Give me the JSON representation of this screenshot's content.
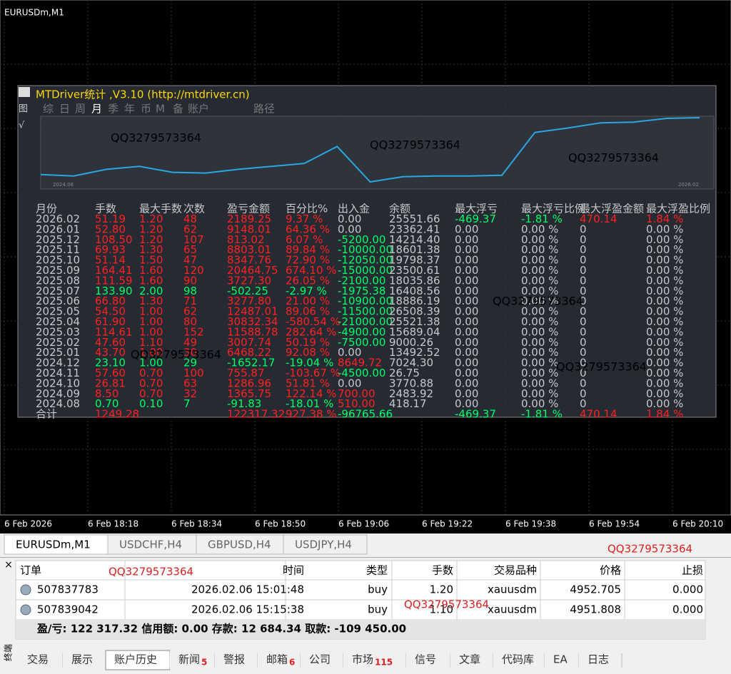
{
  "chart_window": {
    "title": "EURUSDm,M1",
    "x_axis_labels": [
      "6 Feb 2026",
      "6 Feb 18:18",
      "6 Feb 18:34",
      "6 Feb 18:50",
      "6 Feb 19:06",
      "6 Feb 19:22",
      "6 Feb 19:38",
      "6 Feb 19:54",
      "6 Feb 20:10"
    ]
  },
  "panel": {
    "title": "MTDriver统计 ,V3.10 (http://mtdriver.cn)",
    "side_icons": [
      "图",
      "√"
    ],
    "tabs": [
      "综",
      "日",
      "周",
      "月",
      "季",
      "年",
      "币",
      "M",
      "备",
      "账户",
      "路径"
    ],
    "sparkline": {
      "start_label": "2024.08",
      "end_label": "2026.02",
      "values": [
        22,
        20,
        29,
        33,
        25,
        24,
        29,
        33,
        37,
        60,
        12,
        19,
        20,
        20,
        21,
        79,
        85,
        92,
        93,
        98,
        99
      ]
    },
    "watermarks": [
      "QQ3279573364",
      "QQ3279573364",
      "QQ3279573364",
      "QQ3279573364",
      "QQ3279573364",
      "QQ3279573364"
    ],
    "table": {
      "columns": [
        "月份",
        "手数",
        "最大手数",
        "次数",
        "盈亏金额",
        "百分比%",
        "出入金",
        "余额",
        "最大浮亏",
        "最大浮亏比例",
        "最大浮盈金额",
        "最大浮盈比例"
      ],
      "rows": [
        [
          "2026.02",
          "51.19",
          "1.20",
          "48",
          "2189.25",
          "9.37 %",
          "0.00",
          "25551.66",
          "-469.37",
          "-1.81 %",
          "470.14",
          "1.84 %"
        ],
        [
          "2026.01",
          "52.80",
          "1.20",
          "62",
          "9148.01",
          "64.36 %",
          "0.00",
          "23362.41",
          "0.00",
          "0.00 %",
          "0",
          "0.00 %"
        ],
        [
          "2025.12",
          "108.50",
          "1.20",
          "107",
          "813.02",
          "6.07 %",
          "-5200.00",
          "14214.40",
          "0.00",
          "0.00 %",
          "0",
          "0.00 %"
        ],
        [
          "2025.11",
          "69.93",
          "1.30",
          "65",
          "8803.01",
          "89.84 %",
          "-10000.00",
          "18601.38",
          "0.00",
          "0.00 %",
          "0",
          "0.00 %"
        ],
        [
          "2025.10",
          "51.14",
          "1.50",
          "47",
          "8347.76",
          "72.90 %",
          "-12050.00",
          "19798.37",
          "0.00",
          "0.00 %",
          "0",
          "0.00 %"
        ],
        [
          "2025.09",
          "164.41",
          "1.60",
          "120",
          "20464.75",
          "674.10 %",
          "-15000.00",
          "23500.61",
          "0.00",
          "0.00 %",
          "0",
          "0.00 %"
        ],
        [
          "2025.08",
          "111.59",
          "1.60",
          "90",
          "3727.30",
          "26.05 %",
          "-2100.00",
          "18035.86",
          "0.00",
          "0.00 %",
          "0",
          "0.00 %"
        ],
        [
          "2025.07",
          "133.90",
          "2.00",
          "98",
          "-502.25",
          "-2.97 %",
          "-1975.38",
          "16408.56",
          "0.00",
          "0.00 %",
          "0",
          "0.00 %"
        ],
        [
          "2025.06",
          "66.80",
          "1.30",
          "71",
          "3277.80",
          "21.00 %",
          "-10900.00",
          "18886.19",
          "0.00",
          "0.00 %",
          "0",
          "0.00 %"
        ],
        [
          "2025.05",
          "54.50",
          "1.00",
          "62",
          "12487.01",
          "89.06 %",
          "-11500.00",
          "26508.39",
          "0.00",
          "0.00 %",
          "0",
          "0.00 %"
        ],
        [
          "2025.04",
          "61.90",
          "1.00",
          "80",
          "30832.34",
          "-580.54 %",
          "-21000.00",
          "25521.38",
          "0.00",
          "0.00 %",
          "0",
          "0.00 %"
        ],
        [
          "2025.03",
          "114.61",
          "1.00",
          "152",
          "11588.78",
          "282.64 %",
          "-4900.00",
          "15689.04",
          "0.00",
          "0.00 %",
          "0",
          "0.00 %"
        ],
        [
          "2025.02",
          "47.60",
          "1.10",
          "49",
          "3007.74",
          "50.19 %",
          "-7500.00",
          "9000.26",
          "0.00",
          "0.00 %",
          "0",
          "0.00 %"
        ],
        [
          "2025.01",
          "43.70",
          "1.00",
          "30",
          "6468.22",
          "92.08 %",
          "0.00",
          "13492.52",
          "0.00",
          "0.00 %",
          "0",
          "0.00 %"
        ],
        [
          "2024.12",
          "23.10",
          "1.00",
          "29",
          "-1652.17",
          "-19.04 %",
          "8649.72",
          "7024.30",
          "0.00",
          "0.00 %",
          "0",
          "0.00 %"
        ],
        [
          "2024.11",
          "57.60",
          "0.70",
          "100",
          "755.87",
          "-103.67 %",
          "-4500.00",
          "26.75",
          "0.00",
          "0.00 %",
          "0",
          "0.00 %"
        ],
        [
          "2024.10",
          "26.81",
          "0.70",
          "63",
          "1286.96",
          "51.81 %",
          "0.00",
          "3770.88",
          "0.00",
          "0.00 %",
          "0",
          "0.00 %"
        ],
        [
          "2024.09",
          "8.50",
          "0.70",
          "32",
          "1365.75",
          "122.14 %",
          "700.00",
          "2483.92",
          "0.00",
          "0.00 %",
          "0",
          "0.00 %"
        ],
        [
          "2024.08",
          "0.70",
          "0.10",
          "7",
          "-91.83",
          "-18.01 %",
          "510.00",
          "418.17",
          "0.00",
          "0.00 %",
          "0",
          "0.00 %"
        ]
      ],
      "total": [
        "合计",
        "1249.28",
        null,
        null,
        "122317.32",
        "927.38 %",
        "-96765.66",
        null,
        "-469.37",
        "-1.81 %",
        "470.14",
        "1.84 %"
      ]
    }
  },
  "chart_tabs": {
    "tabs": [
      "EURUSDm,M1",
      "USDCHF,H4",
      "GBPUSD,H4",
      "USDJPY,H4"
    ],
    "watermark": "QQ3279573364"
  },
  "terminal": {
    "side_label": "终端",
    "columns": [
      "订单",
      "时间",
      "类型",
      "手数",
      "交易品种",
      "价格",
      "止损"
    ],
    "watermarks": [
      "QQ3279573364",
      "QQ3279573364"
    ],
    "rows": [
      [
        "507837783",
        "2026.02.06 15:01:48",
        "buy",
        "1.20",
        "xauusdm",
        "4952.705",
        "0.000"
      ],
      [
        "507839042",
        "2026.02.06 15:15:38",
        "buy",
        "1.10",
        "xauusdm",
        "4951.808",
        "0.000"
      ]
    ],
    "summary": "盈/亏: 122 317.32  信用额: 0.00  存款: 12 684.34  取款: -109 450.00",
    "tabs": [
      {
        "label": "交易"
      },
      {
        "label": "展示"
      },
      {
        "label": "账户历史"
      },
      {
        "label": "新闻",
        "badge": "5"
      },
      {
        "label": "警报"
      },
      {
        "label": "邮箱",
        "badge": "6"
      },
      {
        "label": "公司"
      },
      {
        "label": "市场",
        "badge": "115"
      },
      {
        "label": "信号"
      },
      {
        "label": "文章"
      },
      {
        "label": "代码库"
      },
      {
        "label": "EA"
      },
      {
        "label": "日志"
      }
    ]
  }
}
